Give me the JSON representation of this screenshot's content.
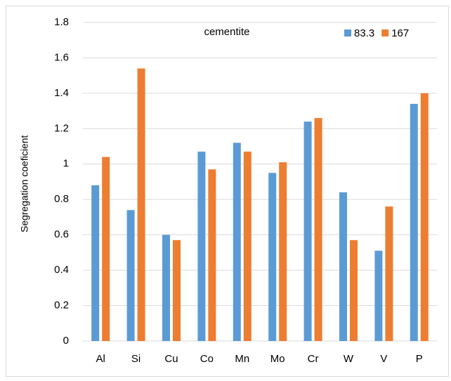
{
  "chart_data": {
    "type": "bar",
    "title": "cementite",
    "y_label": "Segregation coeficient",
    "categories": [
      "Al",
      "Si",
      "Cu",
      "Co",
      "Mn",
      "Mo",
      "Cr",
      "W",
      "V",
      "P"
    ],
    "series": [
      {
        "name": "83.3",
        "color": "#5b9bd5",
        "values": [
          0.88,
          0.74,
          0.6,
          1.07,
          1.12,
          0.95,
          1.24,
          0.84,
          0.51,
          1.34
        ]
      },
      {
        "name": "167",
        "color": "#ed7d31",
        "values": [
          1.04,
          1.54,
          0.57,
          0.97,
          1.07,
          1.01,
          1.26,
          0.57,
          0.76,
          1.4
        ]
      }
    ],
    "ylim": [
      0,
      1.8
    ],
    "yticks": [
      0,
      0.2,
      0.4,
      0.6,
      0.8,
      1,
      1.2,
      1.4,
      1.6,
      1.8
    ],
    "grid": true,
    "legend": "top-right"
  }
}
